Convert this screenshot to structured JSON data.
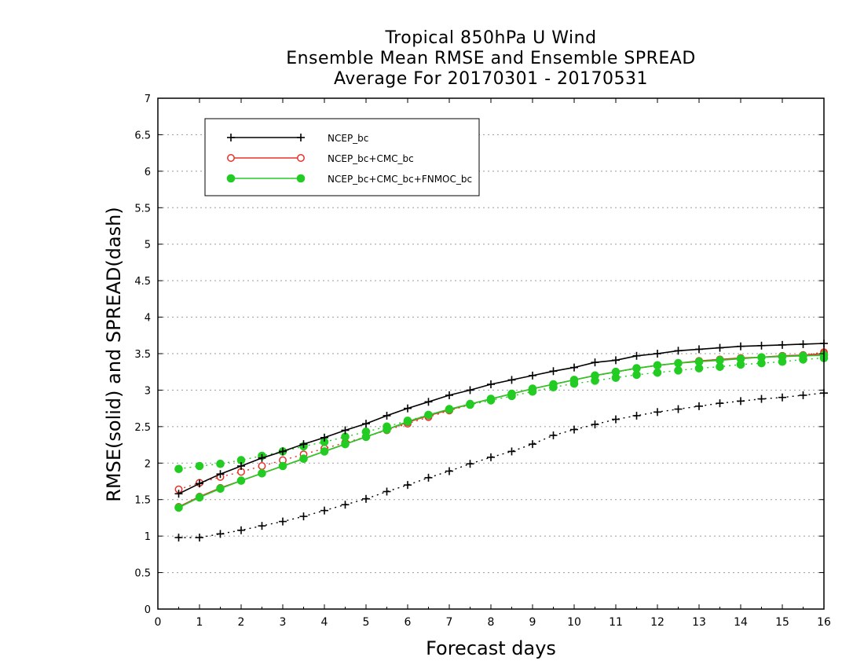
{
  "chart_data": {
    "type": "line",
    "title_lines": [
      "Tropical 850hPa U Wind",
      "Ensemble Mean RMSE and Ensemble SPREAD",
      "Average For 20170301 - 20170531"
    ],
    "xlabel": "Forecast days",
    "ylabel": "RMSE(solid) and SPREAD(dash)",
    "xlim": [
      0,
      16
    ],
    "ylim": [
      0,
      7
    ],
    "xticks": [
      "0",
      "1",
      "2",
      "3",
      "4",
      "5",
      "6",
      "7",
      "8",
      "9",
      "10",
      "11",
      "12",
      "13",
      "14",
      "15",
      "16"
    ],
    "yticks": [
      "0",
      "0.5",
      "1",
      "1.5",
      "2",
      "2.5",
      "3",
      "3.5",
      "4",
      "4.5",
      "5",
      "5.5",
      "6",
      "6.5",
      "7"
    ],
    "grid": "horizontal dotted",
    "legend_position": "top-left",
    "x": [
      0.5,
      1,
      1.5,
      2,
      2.5,
      3,
      3.5,
      4,
      4.5,
      5,
      5.5,
      6,
      6.5,
      7,
      7.5,
      8,
      8.5,
      9,
      9.5,
      10,
      10.5,
      11,
      11.5,
      12,
      12.5,
      13,
      13.5,
      14,
      14.5,
      15,
      15.5,
      16
    ],
    "series": [
      {
        "name": "NCEP_bc",
        "color": "#000000",
        "marker": "plus",
        "rmse": [
          1.58,
          1.72,
          1.85,
          1.96,
          2.07,
          2.16,
          2.26,
          2.35,
          2.45,
          2.54,
          2.65,
          2.75,
          2.84,
          2.93,
          3.0,
          3.08,
          3.14,
          3.2,
          3.26,
          3.31,
          3.38,
          3.41,
          3.47,
          3.5,
          3.54,
          3.56,
          3.58,
          3.6,
          3.61,
          3.62,
          3.63,
          3.64
        ],
        "spread": [
          0.98,
          0.98,
          1.03,
          1.08,
          1.14,
          1.2,
          1.27,
          1.35,
          1.43,
          1.51,
          1.61,
          1.7,
          1.8,
          1.89,
          1.99,
          2.08,
          2.16,
          2.26,
          2.38,
          2.46,
          2.53,
          2.6,
          2.65,
          2.7,
          2.74,
          2.78,
          2.82,
          2.85,
          2.88,
          2.9,
          2.93,
          2.96
        ]
      },
      {
        "name": "NCEP_bc+CMC_bc",
        "color": "#e8302a",
        "marker": "open-circle",
        "rmse": [
          1.4,
          1.54,
          1.66,
          1.76,
          1.86,
          1.96,
          2.06,
          2.16,
          2.26,
          2.36,
          2.46,
          2.56,
          2.65,
          2.73,
          2.81,
          2.88,
          2.95,
          3.02,
          3.08,
          3.14,
          3.2,
          3.25,
          3.3,
          3.34,
          3.37,
          3.4,
          3.42,
          3.44,
          3.45,
          3.47,
          3.48,
          3.5
        ],
        "spread": [
          1.64,
          1.73,
          1.81,
          1.88,
          1.96,
          2.04,
          2.12,
          2.2,
          2.28,
          2.36,
          2.45,
          2.54,
          2.63,
          2.72,
          2.8,
          2.88,
          2.95,
          3.02,
          3.08,
          3.14,
          3.2,
          3.25,
          3.3,
          3.34,
          3.37,
          3.4,
          3.42,
          3.44,
          3.45,
          3.47,
          3.48,
          3.52
        ]
      },
      {
        "name": "NCEP_bc+CMC_bc+FNMOC_bc",
        "color": "#22cc22",
        "marker": "filled-circle",
        "rmse": [
          1.39,
          1.53,
          1.65,
          1.76,
          1.86,
          1.96,
          2.06,
          2.16,
          2.26,
          2.36,
          2.46,
          2.57,
          2.66,
          2.74,
          2.81,
          2.88,
          2.95,
          3.02,
          3.08,
          3.14,
          3.2,
          3.25,
          3.3,
          3.34,
          3.37,
          3.39,
          3.41,
          3.43,
          3.45,
          3.46,
          3.47,
          3.48
        ],
        "spread": [
          1.92,
          1.96,
          1.99,
          2.04,
          2.1,
          2.16,
          2.23,
          2.29,
          2.36,
          2.43,
          2.5,
          2.58,
          2.66,
          2.73,
          2.8,
          2.86,
          2.92,
          2.98,
          3.04,
          3.09,
          3.13,
          3.17,
          3.21,
          3.24,
          3.27,
          3.3,
          3.32,
          3.35,
          3.37,
          3.39,
          3.42,
          3.44
        ]
      }
    ]
  }
}
